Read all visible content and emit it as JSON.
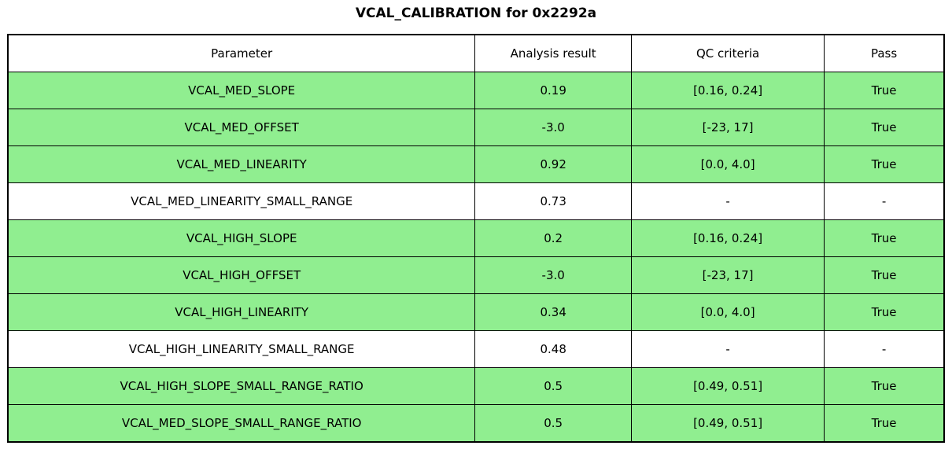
{
  "title": "VCAL_CALIBRATION for 0x2292a",
  "colors": {
    "pass_row_background": "#90EE90",
    "neutral_row_background": "#FFFFFF",
    "border": "#000000",
    "text": "#000000"
  },
  "table": {
    "headers": [
      "Parameter",
      "Analysis result",
      "QC criteria",
      "Pass"
    ],
    "rows": [
      {
        "parameter": "VCAL_MED_SLOPE",
        "result": "0.19",
        "criteria": "[0.16, 0.24]",
        "pass": "True",
        "highlight": true
      },
      {
        "parameter": "VCAL_MED_OFFSET",
        "result": "-3.0",
        "criteria": "[-23, 17]",
        "pass": "True",
        "highlight": true
      },
      {
        "parameter": "VCAL_MED_LINEARITY",
        "result": "0.92",
        "criteria": "[0.0, 4.0]",
        "pass": "True",
        "highlight": true
      },
      {
        "parameter": "VCAL_MED_LINEARITY_SMALL_RANGE",
        "result": "0.73",
        "criteria": "-",
        "pass": "-",
        "highlight": false
      },
      {
        "parameter": "VCAL_HIGH_SLOPE",
        "result": "0.2",
        "criteria": "[0.16, 0.24]",
        "pass": "True",
        "highlight": true
      },
      {
        "parameter": "VCAL_HIGH_OFFSET",
        "result": "-3.0",
        "criteria": "[-23, 17]",
        "pass": "True",
        "highlight": true
      },
      {
        "parameter": "VCAL_HIGH_LINEARITY",
        "result": "0.34",
        "criteria": "[0.0, 4.0]",
        "pass": "True",
        "highlight": true
      },
      {
        "parameter": "VCAL_HIGH_LINEARITY_SMALL_RANGE",
        "result": "0.48",
        "criteria": "-",
        "pass": "-",
        "highlight": false
      },
      {
        "parameter": "VCAL_HIGH_SLOPE_SMALL_RANGE_RATIO",
        "result": "0.5",
        "criteria": "[0.49, 0.51]",
        "pass": "True",
        "highlight": true
      },
      {
        "parameter": "VCAL_MED_SLOPE_SMALL_RANGE_RATIO",
        "result": "0.5",
        "criteria": "[0.49, 0.51]",
        "pass": "True",
        "highlight": true
      }
    ]
  },
  "chart_data": {
    "type": "table",
    "title": "VCAL_CALIBRATION for 0x2292a",
    "columns": [
      "Parameter",
      "Analysis result",
      "QC criteria",
      "Pass"
    ],
    "rows": [
      [
        "VCAL_MED_SLOPE",
        0.19,
        "[0.16, 0.24]",
        "True"
      ],
      [
        "VCAL_MED_OFFSET",
        -3.0,
        "[-23, 17]",
        "True"
      ],
      [
        "VCAL_MED_LINEARITY",
        0.92,
        "[0.0, 4.0]",
        "True"
      ],
      [
        "VCAL_MED_LINEARITY_SMALL_RANGE",
        0.73,
        "-",
        "-"
      ],
      [
        "VCAL_HIGH_SLOPE",
        0.2,
        "[0.16, 0.24]",
        "True"
      ],
      [
        "VCAL_HIGH_OFFSET",
        -3.0,
        "[-23, 17]",
        "True"
      ],
      [
        "VCAL_HIGH_LINEARITY",
        0.34,
        "[0.0, 4.0]",
        "True"
      ],
      [
        "VCAL_HIGH_LINEARITY_SMALL_RANGE",
        0.48,
        "-",
        "-"
      ],
      [
        "VCAL_HIGH_SLOPE_SMALL_RANGE_RATIO",
        0.5,
        "[0.49, 0.51]",
        "True"
      ],
      [
        "VCAL_MED_SLOPE_SMALL_RANGE_RATIO",
        0.5,
        "[0.49, 0.51]",
        "True"
      ]
    ],
    "row_highlighted": [
      true,
      true,
      true,
      false,
      true,
      true,
      true,
      false,
      true,
      true
    ],
    "legend_position": "none",
    "grid": true
  }
}
